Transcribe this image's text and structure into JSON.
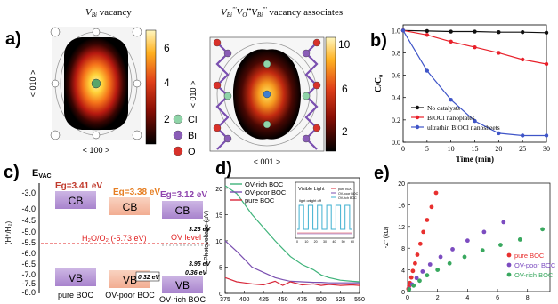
{
  "panels": {
    "a": {
      "label": "a)",
      "left_title_sub": "Bi",
      "left_title_rest": " vacancy",
      "left_xlabel": "< 100 >",
      "left_ylabel": "< 010 >",
      "left_cbar_ticks": [
        "6",
        "4",
        "2"
      ],
      "right_title_rest": " vacancy associates",
      "right_xlabel": "< 001 >",
      "right_ylabel": "< 010 >",
      "right_cbar_ticks": [
        "10",
        "6",
        "2"
      ],
      "legend": [
        "Cl",
        "Bi",
        "O"
      ],
      "legend_colors": [
        "#8fd4a8",
        "#8a5db7",
        "#d8312a"
      ]
    },
    "b": {
      "label": "b)"
    },
    "c": {
      "label": "c)",
      "evac": "E",
      "evac_sub": "VAC",
      "ylabel": "(H⁺/H₂)",
      "yticks": [
        "-3.0",
        "-4.0",
        "-4.5",
        "-5.0",
        "-5.5",
        "-6.0",
        "-6.5",
        "-7.0",
        "-7.5",
        "-8.0"
      ],
      "bandgaps": [
        "Eg=3.41 eV",
        "Eg=3.38 eV",
        "Eg=3.12 eV"
      ],
      "cb_label": "CB",
      "vb_label": "VB",
      "redox_label": "H₂O/O₂ (-5.73 eV)",
      "ov_level": "OV  level",
      "annotations": [
        "3.23 eV",
        "3.95 eV",
        "0.32 eV",
        "0.36 eV"
      ],
      "samples": [
        "pure BOC",
        "OV-poor BOC",
        "OV-rich BOC"
      ]
    },
    "d": {
      "label": "d)"
    },
    "e": {
      "label": "e)"
    }
  },
  "chart_data": [
    {
      "panel": "b",
      "type": "line",
      "x": [
        0,
        5,
        10,
        15,
        20,
        25,
        30
      ],
      "series": [
        {
          "name": "No catalysts",
          "color": "#111111",
          "values": [
            1.0,
            0.995,
            0.99,
            0.99,
            0.985,
            0.985,
            0.98
          ]
        },
        {
          "name": "BiOCl nanoplates",
          "color": "#e8202a",
          "values": [
            1.0,
            0.96,
            0.9,
            0.85,
            0.8,
            0.74,
            0.7
          ]
        },
        {
          "name": "ultrathin BiOCl nanosheets",
          "color": "#3f55c8",
          "values": [
            1.0,
            0.64,
            0.38,
            0.19,
            0.08,
            0.06,
            0.06
          ]
        }
      ],
      "xlabel": "Time (min)",
      "ylabel": "C/C₀",
      "xlim": [
        0,
        30
      ],
      "ylim": [
        0,
        1.05
      ],
      "xticks": [
        0,
        5,
        10,
        15,
        20,
        25,
        30
      ],
      "yticks": [
        0.0,
        0.2,
        0.4,
        0.6,
        0.8,
        1.0
      ],
      "ytick_labels": [
        "0.0",
        "0.2",
        "0.4",
        "0.6",
        "0.8",
        "1.0"
      ],
      "legend_position": "bottom-left"
    },
    {
      "panel": "d",
      "type": "line",
      "x": [
        375,
        390,
        400,
        410,
        425,
        440,
        450,
        460,
        475,
        490,
        500,
        510,
        525,
        540,
        550
      ],
      "series": [
        {
          "name": "OV-rich BOC",
          "color": "#3fb37a",
          "values": [
            20.5,
            19,
            17,
            15,
            12.5,
            10,
            8.5,
            7,
            5.5,
            4.5,
            3.5,
            3,
            2.5,
            2.3,
            2.2
          ]
        },
        {
          "name": "OV-poor BOC",
          "color": "#7a4fb0",
          "values": [
            10,
            8,
            6.5,
            5,
            4,
            3,
            2.6,
            2.3,
            2.2,
            2.1,
            2.1,
            2.0,
            2.0,
            2.0,
            2.0
          ]
        },
        {
          "name": "pure BOC",
          "color": "#d8283a",
          "values": [
            3,
            2.2,
            2,
            1.8,
            1.6,
            2.3,
            1.5,
            2.2,
            1.6,
            1.8,
            1.5,
            1.7,
            1.5,
            1.6,
            1.5
          ]
        }
      ],
      "ylabel": "Photovoltage (μV)",
      "xlim": [
        375,
        550
      ],
      "ylim": [
        0,
        22
      ],
      "xticks": [
        375,
        400,
        425,
        450,
        475,
        500,
        525,
        550
      ],
      "yticks": [
        0,
        5,
        10,
        15,
        20
      ],
      "legend_position": "top-left",
      "inset": {
        "title": "Visible Light",
        "on_label": "light on",
        "off_label": "light off",
        "xticks": [
          0,
          10,
          20,
          30,
          40,
          50,
          60
        ],
        "legend": [
          "pure BOC",
          "OV-poor BOC",
          "OV-rich BOC"
        ],
        "legend_colors": [
          "#d8283a",
          "#7a4fb0",
          "#3fb0d0"
        ]
      }
    },
    {
      "panel": "e",
      "type": "scatter",
      "series": [
        {
          "name": "pure BOC",
          "color": "#e8302f",
          "x": [
            0.05,
            0.1,
            0.15,
            0.25,
            0.35,
            0.5,
            0.65,
            0.85,
            1.05,
            1.3,
            1.6,
            1.9
          ],
          "y": [
            0.5,
            1.0,
            1.6,
            2.6,
            3.8,
            5.2,
            6.8,
            8.8,
            11.0,
            13.2,
            15.6,
            18.2
          ]
        },
        {
          "name": "OV-poor BOC",
          "color": "#7c4cc0",
          "x": [
            0.1,
            0.3,
            0.6,
            1.0,
            1.5,
            2.2,
            3.0,
            4.0,
            5.1,
            6.4
          ],
          "y": [
            0.5,
            1.3,
            2.5,
            3.7,
            5.0,
            6.4,
            7.8,
            9.4,
            11.0,
            12.8
          ]
        },
        {
          "name": "OV-rich BOC",
          "color": "#39a85f",
          "x": [
            0.1,
            0.4,
            0.8,
            1.3,
            2.0,
            2.8,
            3.8,
            5.0,
            6.2,
            7.5,
            9.0
          ],
          "y": [
            0.4,
            1.1,
            2.0,
            3.0,
            4.0,
            5.2,
            6.4,
            7.6,
            8.6,
            9.6,
            11.5
          ]
        }
      ],
      "ylabel": "-Z\" (kΩ)",
      "xlim": [
        0,
        9.5
      ],
      "ylim": [
        0,
        20
      ],
      "xticks": [
        0,
        2,
        4,
        6,
        8
      ],
      "yticks": [
        0,
        4,
        8,
        12,
        16,
        20
      ],
      "legend_position": "bottom-right"
    }
  ]
}
